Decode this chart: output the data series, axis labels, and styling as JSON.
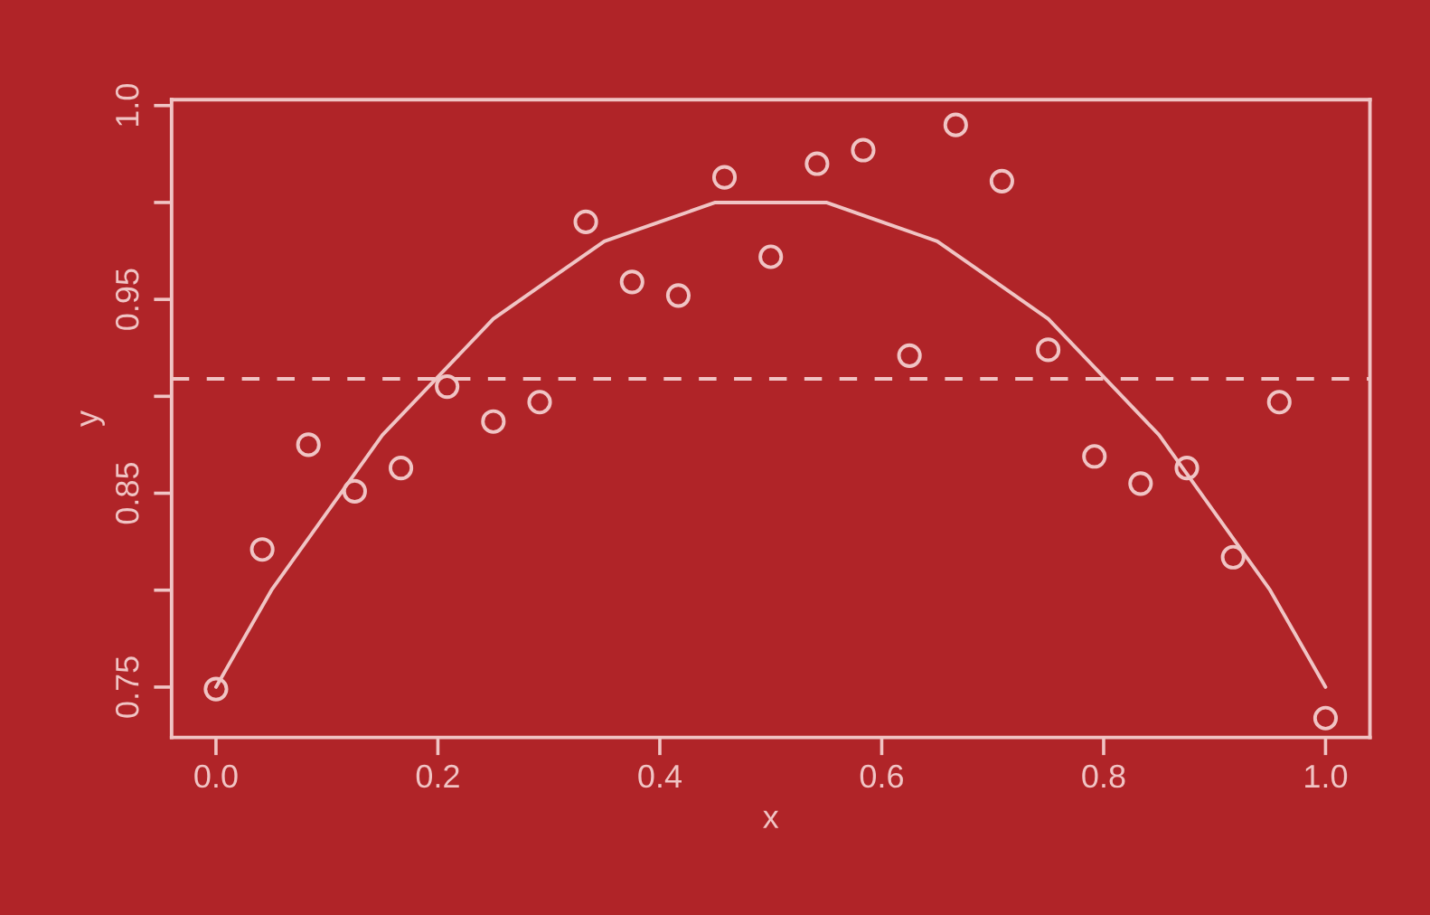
{
  "chart_data": {
    "type": "scatter",
    "xlabel": "x",
    "ylabel": "y",
    "marker": "circle",
    "grid": false,
    "legend": false,
    "xlim": [
      -0.04,
      1.04
    ],
    "ylim": [
      0.724,
      1.053
    ],
    "xticks": [
      {
        "value": 0,
        "label": "0.0"
      },
      0.2,
      0.4,
      0.6,
      0.8,
      {
        "value": 1,
        "label": "1.0"
      }
    ],
    "yticks": [
      0.75,
      {
        "value": 0.8,
        "label": null
      },
      0.85,
      {
        "value": 0.9,
        "label": null
      },
      0.95,
      {
        "value": 1.0,
        "label": null
      },
      {
        "value": 1.05,
        "label": "1.0"
      }
    ],
    "ref_lines": [
      {
        "axis": "y",
        "value": 0.909,
        "label": null,
        "color": "#f0c4c4",
        "line_style": "dashed"
      }
    ],
    "series": [
      {
        "color": "#f0c4c4",
        "x": [
          0,
          0.0417,
          0.0833,
          0.125,
          0.1667,
          0.2083,
          0.25,
          0.2917,
          0.3333,
          0.375,
          0.4167,
          0.4583,
          0.5,
          0.5417,
          0.5833,
          0.625,
          0.6667,
          0.7083,
          0.75,
          0.7917,
          0.8333,
          0.875,
          0.9167,
          0.9583,
          1.0
        ],
        "values": [
          0.749,
          0.821,
          0.875,
          0.851,
          0.863,
          0.905,
          0.887,
          0.897,
          0.99,
          0.959,
          0.952,
          1.013,
          0.972,
          1.02,
          1.027,
          0.921,
          1.04,
          1.011,
          0.924,
          0.869,
          0.855,
          0.863,
          0.817,
          0.897,
          0.734
        ]
      },
      {
        "type": "line",
        "color": "#f0c4c4",
        "marker": "none",
        "line_style": "solid",
        "x": [
          0,
          0.05,
          0.1,
          0.15,
          0.2,
          0.25,
          0.3,
          0.35,
          0.4,
          0.45,
          0.5,
          0.55,
          0.6,
          0.65,
          0.7,
          0.75,
          0.8,
          0.85,
          0.9,
          0.95,
          1.0
        ],
        "values": [
          0.75,
          0.8,
          0.84,
          0.88,
          0.91,
          0.94,
          0.96,
          0.98,
          0.99,
          1.0,
          1.0,
          1.0,
          0.99,
          0.98,
          0.96,
          0.94,
          0.91,
          0.88,
          0.84,
          0.8,
          0.75
        ]
      }
    ]
  }
}
